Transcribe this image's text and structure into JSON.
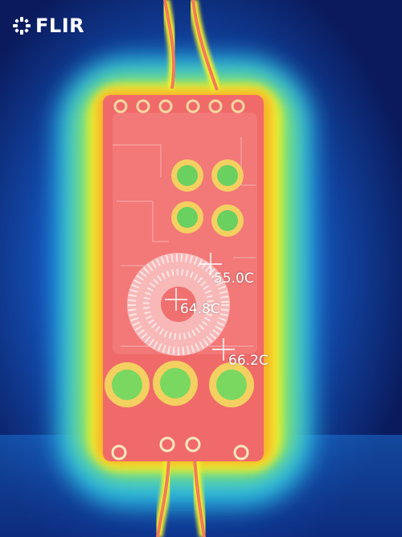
{
  "brand": {
    "logo_text": "FLIR",
    "logo_icon": "flir-flame-icon"
  },
  "measurements": [
    {
      "label": "55.0C"
    },
    {
      "label": "64.8C"
    },
    {
      "label": "66.2C"
    }
  ],
  "palette": {
    "cold": "#0a1a5c",
    "cool": "#1560c8",
    "mid": "#2ec8e8",
    "warm": "#f2f02a",
    "hot": "#f06060",
    "hottest": "#f6c0c0"
  }
}
